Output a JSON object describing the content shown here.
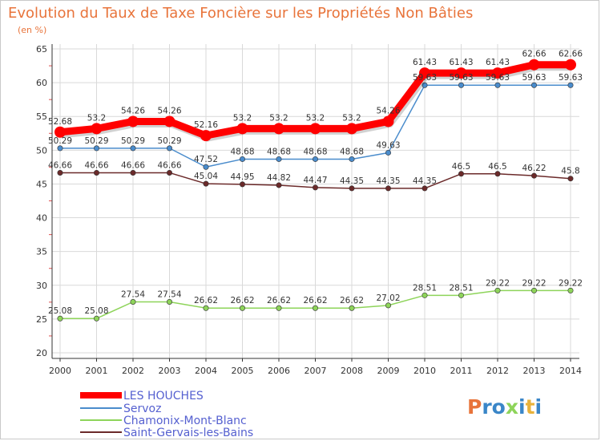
{
  "chart_data": {
    "type": "line",
    "title": "Evolution du Taux de Taxe Foncière sur les Propriétés Non Bâties",
    "subtitle": "(en %)",
    "xlabel": "",
    "ylabel": "(en %)",
    "ylim": [
      20,
      65
    ],
    "yticks": [
      20,
      25,
      30,
      35,
      40,
      45,
      50,
      55,
      60,
      65
    ],
    "grid": true,
    "categories": [
      "2000",
      "2001",
      "2002",
      "2003",
      "2004",
      "2005",
      "2006",
      "2007",
      "2008",
      "2009",
      "2010",
      "2011",
      "2012",
      "2013",
      "2014"
    ],
    "series": [
      {
        "name": "LES HOUCHES",
        "color": "#ff0000",
        "labels": [
          "52.68",
          "53.2",
          "54.26",
          "54.26",
          "52.16",
          "53.2",
          "53.2",
          "53.2",
          "53.2",
          "54.26",
          "61.43",
          "61.43",
          "61.43",
          "62.66",
          "62.66"
        ],
        "values": [
          52.68,
          53.2,
          54.26,
          54.26,
          52.16,
          53.2,
          53.2,
          53.2,
          53.2,
          54.26,
          61.43,
          61.43,
          61.43,
          62.66,
          62.66
        ]
      },
      {
        "name": "Servoz",
        "color": "#4a8ccc",
        "labels": [
          "50.29",
          "50.29",
          "50.29",
          "50.29",
          "47.52",
          "48.68",
          "48.68",
          "48.68",
          "48.68",
          "49.63",
          "59.63",
          "59.63",
          "59.63",
          "59.63",
          "59.63"
        ],
        "values": [
          50.29,
          50.29,
          50.29,
          50.29,
          47.52,
          48.68,
          48.68,
          48.68,
          48.68,
          49.63,
          59.63,
          59.63,
          59.63,
          59.63,
          59.63
        ]
      },
      {
        "name": "Chamonix-Mont-Blanc",
        "color": "#8ed45a",
        "labels": [
          "25.08",
          "25.08",
          "27.54",
          "27.54",
          "26.62",
          "26.62",
          "26.62",
          "26.62",
          "26.62",
          "27.02",
          "28.51",
          "28.51",
          "29.22",
          "29.22",
          "29.22"
        ],
        "values": [
          25.08,
          25.08,
          27.54,
          27.54,
          26.62,
          26.62,
          26.62,
          26.62,
          26.62,
          27.02,
          28.51,
          28.51,
          29.22,
          29.22,
          29.22
        ]
      },
      {
        "name": "Saint-Gervais-les-Bains",
        "color": "#6b2a2a",
        "labels": [
          "46.66",
          "46.66",
          "46.66",
          "46.66",
          "45.04",
          "44.95",
          "44.82",
          "44.47",
          "44.35",
          "44.35",
          "44.35",
          "46.5",
          "46.5",
          "46.22",
          "45.8"
        ],
        "values": [
          46.66,
          46.66,
          46.66,
          46.66,
          45.04,
          44.95,
          44.82,
          44.47,
          44.35,
          44.35,
          44.35,
          46.5,
          46.5,
          46.22,
          45.8
        ]
      }
    ],
    "legend": "bottom-left"
  },
  "brand": {
    "logo_text": "Proxiti"
  }
}
